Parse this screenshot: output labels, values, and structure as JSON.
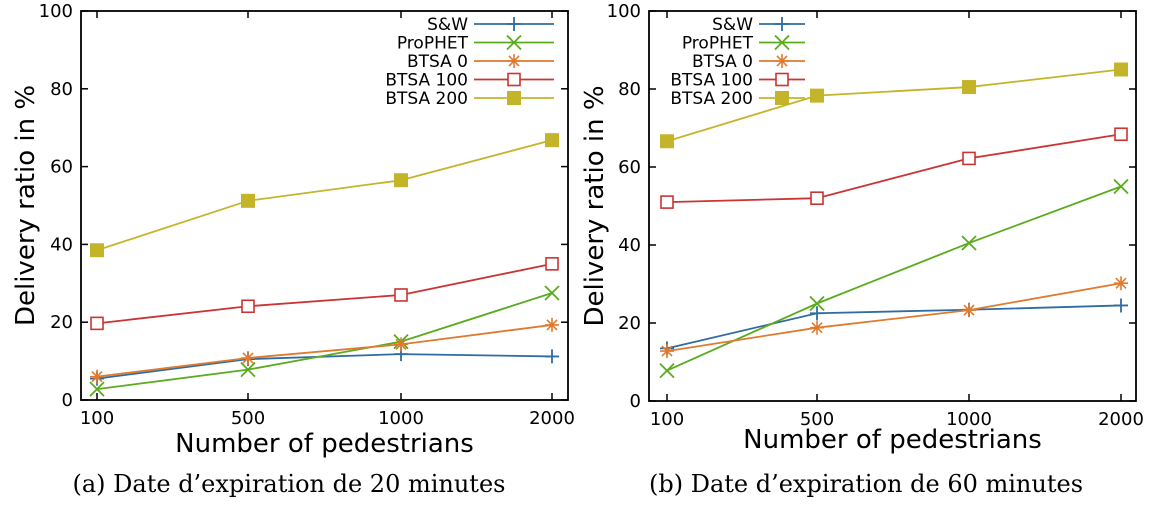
{
  "chart_data": [
    {
      "type": "line",
      "caption": "(a) Date d’expiration de 20 minutes",
      "xlabel": "Number of pedestrians",
      "ylabel": "Delivery ratio in %",
      "categories": [
        "100",
        "500",
        "1000",
        "2000"
      ],
      "ylim": [
        0,
        100
      ],
      "yticks": [
        0,
        20,
        40,
        60,
        80,
        100
      ],
      "legend_position": "top-right",
      "series": [
        {
          "name": "S&W",
          "values": [
            5.5,
            10.5,
            11.8,
            11.2
          ],
          "color": "#2f6ca3",
          "marker": "plus"
        },
        {
          "name": "ProPHET",
          "values": [
            2.8,
            7.8,
            15.0,
            27.5
          ],
          "color": "#5aab1e",
          "marker": "x"
        },
        {
          "name": "BTSA 0",
          "values": [
            6.0,
            10.8,
            14.3,
            19.3
          ],
          "color": "#e07a2e",
          "marker": "star"
        },
        {
          "name": "BTSA 100",
          "values": [
            19.7,
            24.1,
            27.0,
            35.0
          ],
          "color": "#cc3333",
          "marker": "square-open"
        },
        {
          "name": "BTSA 200",
          "values": [
            38.5,
            51.2,
            56.5,
            66.8
          ],
          "color": "#c4b42a",
          "marker": "square-filled"
        }
      ]
    },
    {
      "type": "line",
      "caption": "(b) Date d’expiration de 60 minutes",
      "xlabel": "Number of pedestrians",
      "ylabel": "Delivery ratio in %",
      "categories": [
        "100",
        "500",
        "1000",
        "2000"
      ],
      "ylim": [
        0,
        100
      ],
      "yticks": [
        0,
        20,
        40,
        60,
        80,
        100
      ],
      "legend_position": "top-left",
      "series": [
        {
          "name": "S&W",
          "values": [
            13.5,
            22.5,
            23.4,
            24.5
          ],
          "color": "#2f6ca3",
          "marker": "plus"
        },
        {
          "name": "ProPHET",
          "values": [
            7.8,
            25.0,
            40.5,
            55.0
          ],
          "color": "#5aab1e",
          "marker": "x"
        },
        {
          "name": "BTSA 0",
          "values": [
            12.8,
            18.8,
            23.3,
            30.2
          ],
          "color": "#e07a2e",
          "marker": "star"
        },
        {
          "name": "BTSA 100",
          "values": [
            51.0,
            52.0,
            62.2,
            68.4
          ],
          "color": "#cc3333",
          "marker": "square-open"
        },
        {
          "name": "BTSA 200",
          "values": [
            66.6,
            78.3,
            80.5,
            85.0
          ],
          "color": "#c4b42a",
          "marker": "square-filled"
        }
      ]
    }
  ]
}
